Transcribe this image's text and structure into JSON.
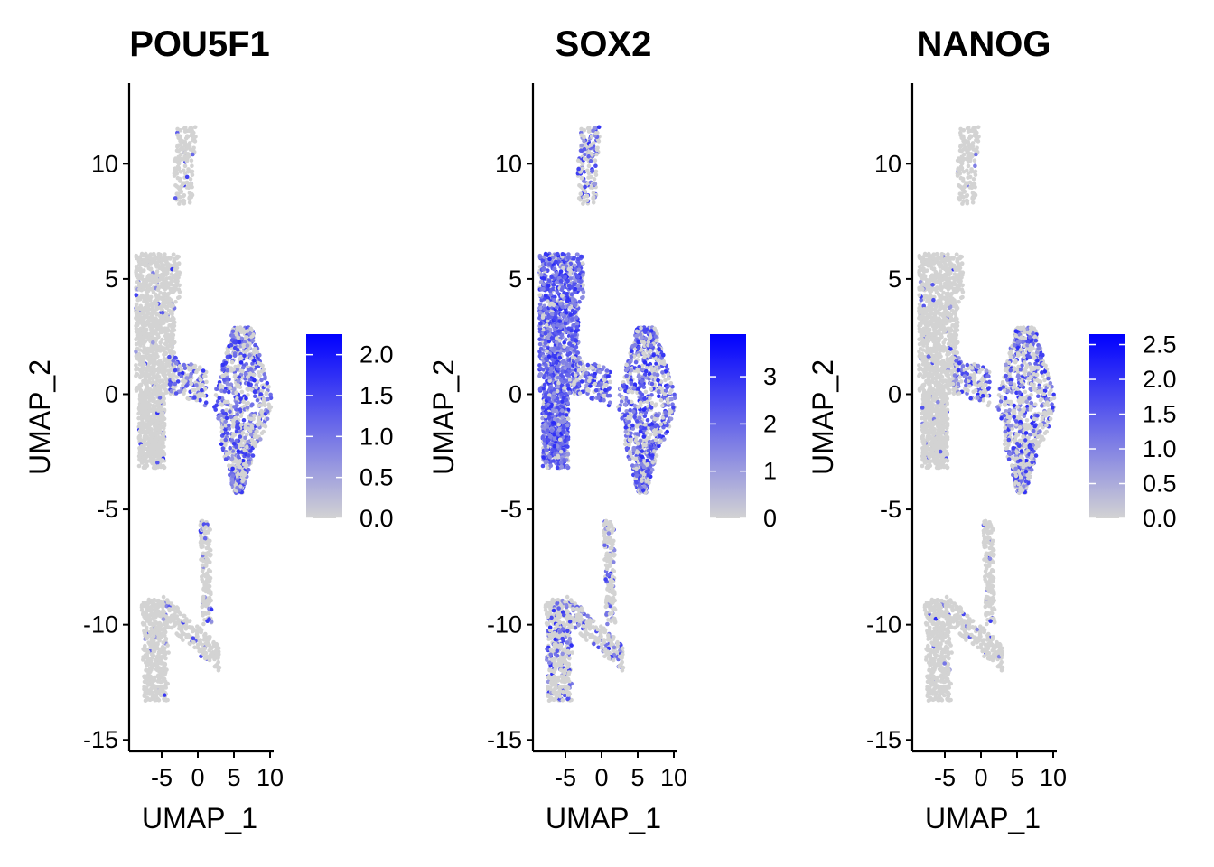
{
  "chart_data": [
    {
      "type": "scatter",
      "title": "POU5F1",
      "xlabel": "UMAP_1",
      "ylabel": "UMAP_2",
      "xlim": [
        -9.5,
        10.5
      ],
      "ylim": [
        -15.5,
        13.5
      ],
      "xticks": [
        "-5",
        "0",
        "5",
        "10"
      ],
      "yticks": [
        "-15",
        "-10",
        "-5",
        "0",
        "5",
        "10"
      ],
      "color_scale": {
        "low": "#d3d3d3",
        "high": "#0000ff",
        "min": 0,
        "max": 2.25
      },
      "legend_ticks": [
        "0.0",
        "0.5",
        "1.0",
        "1.5",
        "2.0"
      ],
      "legend_values": [
        0,
        0.5,
        1.0,
        1.5,
        2.0
      ],
      "grid": false,
      "legend_position": "right",
      "cluster_expression": {
        "top": 0.03,
        "large_left": 0.02,
        "right_lobe": 0.42,
        "lower_left": 0.01,
        "lower_stalk": 0.05
      }
    },
    {
      "type": "scatter",
      "title": "SOX2",
      "xlabel": "UMAP_1",
      "ylabel": "UMAP_2",
      "xlim": [
        -9.5,
        10.5
      ],
      "ylim": [
        -15.5,
        13.5
      ],
      "xticks": [
        "-5",
        "0",
        "5",
        "10"
      ],
      "yticks": [
        "-15",
        "-10",
        "-5",
        "0",
        "5",
        "10"
      ],
      "color_scale": {
        "low": "#d3d3d3",
        "high": "#0000ff",
        "min": 0,
        "max": 3.9
      },
      "legend_ticks": [
        "0",
        "1",
        "2",
        "3"
      ],
      "legend_values": [
        0,
        1,
        2,
        3
      ],
      "grid": false,
      "legend_position": "right",
      "cluster_expression": {
        "top": 0.35,
        "large_left": 0.72,
        "right_lobe": 0.55,
        "lower_left": 0.22,
        "lower_stalk": 0.18
      }
    },
    {
      "type": "scatter",
      "title": "NANOG",
      "xlabel": "UMAP_1",
      "ylabel": "UMAP_2",
      "xlim": [
        -9.5,
        10.5
      ],
      "ylim": [
        -15.5,
        13.5
      ],
      "xticks": [
        "-5",
        "0",
        "5",
        "10"
      ],
      "yticks": [
        "-15",
        "-10",
        "-5",
        "0",
        "5",
        "10"
      ],
      "color_scale": {
        "low": "#d3d3d3",
        "high": "#0000ff",
        "min": 0,
        "max": 2.65
      },
      "legend_ticks": [
        "0.0",
        "0.5",
        "1.0",
        "1.5",
        "2.0",
        "2.5"
      ],
      "legend_values": [
        0,
        0.5,
        1.0,
        1.5,
        2.0,
        2.5
      ],
      "grid": false,
      "legend_position": "right",
      "cluster_expression": {
        "top": 0.01,
        "large_left": 0.02,
        "right_lobe": 0.38,
        "lower_left": 0.01,
        "lower_stalk": 0.04
      }
    }
  ]
}
